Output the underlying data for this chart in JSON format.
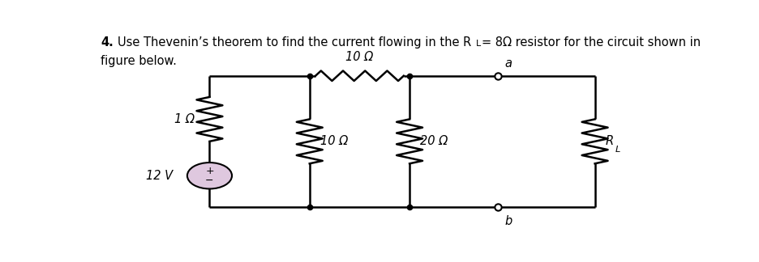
{
  "bg_color": "#ffffff",
  "wire_color": "#000000",
  "text_color": "#000000",
  "font_size": 10.5,
  "circuit": {
    "xl": 0.195,
    "xm1": 0.365,
    "xm2": 0.535,
    "xm3": 0.685,
    "xr": 0.85,
    "yt": 0.78,
    "yb": 0.13
  },
  "labels": {
    "title_line1": "4. Use Thevenin’s theorem to find the current flowing in the R",
    "title_sub": "L",
    "title_rest": "= 8Ω resistor for the circuit shown in",
    "title_line2": "figure below.",
    "V": "12 V",
    "R1": "1 Ω",
    "R2top": "10 Ω",
    "R2mid": "10 Ω",
    "R3": "20 Ω",
    "RL": "R",
    "RL_sub": "L",
    "node_a": "a",
    "node_b": "b"
  }
}
